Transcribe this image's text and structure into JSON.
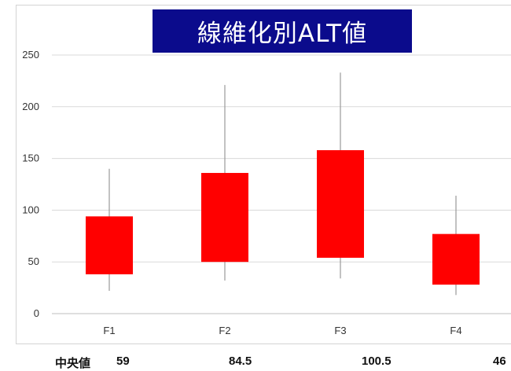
{
  "chart_data": {
    "type": "box",
    "title": "線維化別ALT値",
    "categories": [
      "F1",
      "F2",
      "F3",
      "F4"
    ],
    "ylim": [
      0,
      250
    ],
    "yticks": [
      0,
      50,
      100,
      150,
      200,
      250
    ],
    "grid": true,
    "boxes": [
      {
        "category": "F1",
        "min": 22,
        "q1": 38,
        "q3": 94,
        "max": 140
      },
      {
        "category": "F2",
        "min": 32,
        "q1": 50,
        "q3": 136,
        "max": 221
      },
      {
        "category": "F3",
        "min": 34,
        "q1": 54,
        "q3": 158,
        "max": 233
      },
      {
        "category": "F4",
        "min": 18,
        "q1": 28,
        "q3": 77,
        "max": 114
      }
    ],
    "median_label": "中央値",
    "medians": [
      "59",
      "84.5",
      "100.5",
      "46"
    ]
  },
  "colors": {
    "title_bg": "#0b0b8c",
    "box_fill": "#ff0000",
    "whisker": "#999999",
    "grid": "#d9d9d9"
  }
}
